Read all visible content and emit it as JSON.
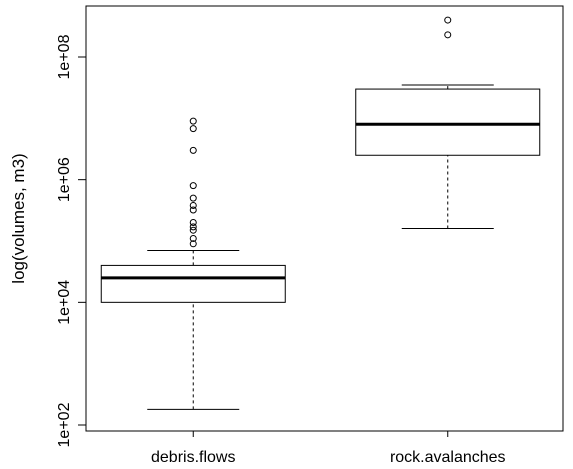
{
  "chart_data": {
    "type": "boxplot",
    "ylabel": "log(volumes, m3)",
    "y_scale": "log10",
    "ylim": [
      60,
      800000000
    ],
    "yticks": [
      100,
      10000,
      1000000,
      100000000
    ],
    "ytick_labels": [
      "1e+02",
      "1e+04",
      "1e+06",
      "1e+08"
    ],
    "categories": [
      "debris.flows",
      "rock.avalanches"
    ],
    "boxes": [
      {
        "name": "debris.flows",
        "whisker_low": 180,
        "q1": 10000,
        "median": 25000,
        "q3": 40000,
        "whisker_high": 70000,
        "outliers": [
          9000000,
          6800000,
          3000000,
          800000,
          500000,
          380000,
          320000,
          200000,
          170000,
          150000,
          110000,
          90000
        ]
      },
      {
        "name": "rock.avalanches",
        "whisker_low": 160000,
        "q1": 2500000,
        "median": 8000000,
        "q3": 30000000,
        "whisker_high": 35000000,
        "outliers": [
          400000000,
          230000000
        ]
      }
    ],
    "grid": false,
    "legend": "none"
  }
}
